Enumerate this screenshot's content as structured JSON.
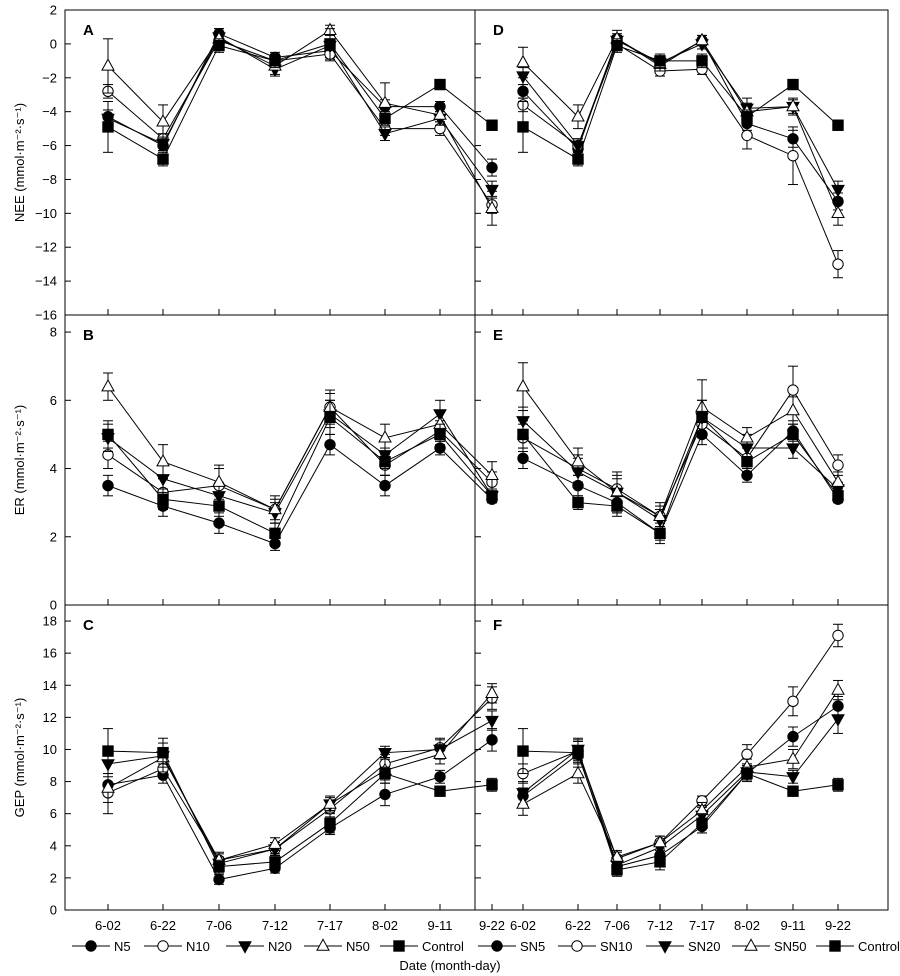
{
  "xlabel": "Date (month-day)",
  "chart_data": [
    {
      "panel": "A",
      "type": "line",
      "ylabel": "NEE (mmol·m⁻²·s⁻¹)",
      "ylim": [
        -16,
        2
      ],
      "yticks": [
        2,
        0,
        -2,
        -4,
        -6,
        -8,
        -10,
        -12,
        -14,
        -16
      ],
      "categories": [
        "6-02",
        "6-22",
        "7-06",
        "7-12",
        "7-17",
        "8-02",
        "9-11",
        "9-22"
      ],
      "series": [
        {
          "name": "N5",
          "marker": "circle-filled",
          "values": [
            -4.3,
            -6.0,
            0.6,
            -0.8,
            -0.4,
            -3.7,
            -3.7,
            -7.3
          ],
          "err": [
            0.4,
            0.3,
            0.3,
            0.3,
            0.4,
            0.4,
            0.3,
            0.5
          ]
        },
        {
          "name": "N10",
          "marker": "circle-open",
          "values": [
            -2.8,
            -5.6,
            0.2,
            -1.0,
            -0.6,
            -5.0,
            -5.0,
            -9.5
          ],
          "err": [
            0.4,
            0.3,
            0.3,
            0.3,
            0.4,
            0.4,
            0.4,
            0.5
          ]
        },
        {
          "name": "N20",
          "marker": "tri-down-filled",
          "values": [
            -4.4,
            -5.9,
            0.4,
            -1.5,
            -0.1,
            -5.3,
            -4.4,
            -8.6
          ],
          "err": [
            0.5,
            0.4,
            0.3,
            0.4,
            0.3,
            0.4,
            0.4,
            0.5
          ]
        },
        {
          "name": "N50",
          "marker": "tri-up-open",
          "values": [
            -1.3,
            -4.6,
            0.3,
            -1.3,
            0.8,
            -3.5,
            -4.2,
            -9.7
          ],
          "err": [
            1.6,
            1.0,
            0.6,
            0.5,
            0.3,
            1.2,
            0.4,
            1.0
          ]
        },
        {
          "name": "Control",
          "marker": "square-filled",
          "values": [
            -4.9,
            -6.8,
            -0.1,
            -1.0,
            0.0,
            -4.4,
            -2.4,
            -4.8
          ],
          "err": [
            1.5,
            0.4,
            0.4,
            0.4,
            0.9,
            0.4,
            0.2,
            0.3
          ]
        }
      ]
    },
    {
      "panel": "D",
      "type": "line",
      "ylim": [
        -16,
        2
      ],
      "yticks": [
        2,
        0,
        -2,
        -4,
        -6,
        -8,
        -10,
        -12,
        -14,
        -16
      ],
      "categories": [
        "6-02",
        "6-22",
        "7-06",
        "7-12",
        "7-17",
        "8-02",
        "9-11",
        "9-22"
      ],
      "series": [
        {
          "name": "SN5",
          "marker": "circle-filled",
          "values": [
            -2.8,
            -6.2,
            0.3,
            -1.3,
            0.2,
            -4.7,
            -5.6,
            -9.3
          ],
          "err": [
            0.4,
            0.4,
            0.3,
            0.3,
            0.3,
            0.4,
            0.5,
            0.5
          ]
        },
        {
          "name": "SN10",
          "marker": "circle-open",
          "values": [
            -3.6,
            -6.0,
            0.0,
            -1.6,
            -1.5,
            -5.4,
            -6.6,
            -13.0
          ],
          "err": [
            0.4,
            0.4,
            0.3,
            0.3,
            0.3,
            0.8,
            1.7,
            0.8
          ]
        },
        {
          "name": "SN20",
          "marker": "tri-down-filled",
          "values": [
            -1.9,
            -6.0,
            0.2,
            -1.1,
            0.0,
            -3.8,
            -3.7,
            -8.6
          ],
          "err": [
            0.5,
            0.4,
            0.3,
            0.3,
            0.3,
            0.6,
            0.4,
            0.5
          ]
        },
        {
          "name": "SN50",
          "marker": "tri-up-open",
          "values": [
            -1.1,
            -4.3,
            0.3,
            -1.2,
            0.2,
            -4.0,
            -3.7,
            -10.0
          ],
          "err": [
            0.9,
            0.7,
            0.5,
            0.4,
            0.3,
            0.5,
            0.5,
            0.7
          ]
        },
        {
          "name": "Control",
          "marker": "square-filled",
          "values": [
            -4.9,
            -6.8,
            -0.1,
            -1.0,
            -1.0,
            -4.3,
            -2.4,
            -4.8
          ],
          "err": [
            1.5,
            0.4,
            0.4,
            0.4,
            0.4,
            0.4,
            0.2,
            0.3
          ]
        }
      ]
    },
    {
      "panel": "B",
      "type": "line",
      "ylabel": "ER (mmol·m⁻²·s⁻¹)",
      "ylim": [
        0,
        8.5
      ],
      "yticks": [
        0,
        2,
        4,
        6,
        8
      ],
      "categories": [
        "6-02",
        "6-22",
        "7-06",
        "7-12",
        "7-17",
        "8-02",
        "9-11",
        "9-22"
      ],
      "series": [
        {
          "name": "N5",
          "marker": "circle-filled",
          "values": [
            3.5,
            2.9,
            2.4,
            1.8,
            4.7,
            3.5,
            4.6,
            3.1
          ],
          "err": [
            0.3,
            0.3,
            0.3,
            0.2,
            0.3,
            0.3,
            0.2,
            0.1
          ]
        },
        {
          "name": "N10",
          "marker": "circle-open",
          "values": [
            4.4,
            3.3,
            3.5,
            2.8,
            5.8,
            4.1,
            5.1,
            3.6
          ],
          "err": [
            0.4,
            0.4,
            0.5,
            0.3,
            0.4,
            0.3,
            0.3,
            0.3
          ]
        },
        {
          "name": "N20",
          "marker": "tri-down-filled",
          "values": [
            4.9,
            3.7,
            3.2,
            2.7,
            5.6,
            4.4,
            5.6,
            3.2
          ],
          "err": [
            0.4,
            0.4,
            0.3,
            0.3,
            0.4,
            0.4,
            0.4,
            0.2
          ]
        },
        {
          "name": "N50",
          "marker": "tri-up-open",
          "values": [
            6.4,
            4.2,
            3.6,
            2.8,
            5.8,
            4.9,
            5.3,
            3.8
          ],
          "err": [
            0.4,
            0.5,
            0.5,
            0.4,
            0.5,
            0.4,
            0.4,
            0.4
          ]
        },
        {
          "name": "Control",
          "marker": "square-filled",
          "values": [
            5.0,
            3.1,
            2.9,
            2.1,
            5.5,
            4.2,
            5.0,
            3.2
          ],
          "err": [
            0.4,
            0.3,
            0.3,
            0.3,
            0.5,
            0.4,
            0.3,
            0.2
          ]
        }
      ]
    },
    {
      "panel": "E",
      "type": "line",
      "ylim": [
        0,
        8.5
      ],
      "yticks": [
        0,
        2,
        4,
        6,
        8
      ],
      "categories": [
        "6-02",
        "6-22",
        "7-06",
        "7-12",
        "7-17",
        "8-02",
        "9-11",
        "9-22"
      ],
      "series": [
        {
          "name": "SN5",
          "marker": "circle-filled",
          "values": [
            4.3,
            3.5,
            3.0,
            2.1,
            5.0,
            3.8,
            5.1,
            3.1
          ],
          "err": [
            0.3,
            0.3,
            0.3,
            0.2,
            0.3,
            0.2,
            0.3,
            0.1
          ]
        },
        {
          "name": "SN10",
          "marker": "circle-open",
          "values": [
            4.9,
            4.0,
            3.4,
            2.6,
            5.3,
            4.3,
            6.3,
            4.1
          ],
          "err": [
            0.4,
            0.4,
            0.4,
            0.3,
            0.4,
            0.4,
            0.7,
            0.3
          ]
        },
        {
          "name": "SN20",
          "marker": "tri-down-filled",
          "values": [
            5.4,
            3.9,
            3.3,
            2.5,
            5.5,
            4.6,
            4.6,
            3.4
          ],
          "err": [
            0.4,
            0.4,
            0.6,
            0.3,
            0.5,
            0.4,
            0.3,
            0.2
          ]
        },
        {
          "name": "SN50",
          "marker": "tri-up-open",
          "values": [
            6.4,
            4.2,
            3.3,
            2.6,
            5.8,
            4.9,
            5.7,
            3.6
          ],
          "err": [
            0.7,
            0.4,
            0.4,
            0.4,
            0.8,
            0.3,
            0.4,
            0.3
          ]
        },
        {
          "name": "Control",
          "marker": "square-filled",
          "values": [
            5.0,
            3.0,
            2.9,
            2.1,
            5.5,
            4.2,
            5.0,
            3.2
          ],
          "err": [
            0.4,
            0.2,
            0.3,
            0.3,
            0.5,
            0.4,
            0.3,
            0.2
          ]
        }
      ]
    },
    {
      "panel": "C",
      "type": "line",
      "ylabel": "GEP (mmol·m⁻²·s⁻¹)",
      "ylim": [
        0,
        19
      ],
      "yticks": [
        0,
        2,
        4,
        6,
        8,
        10,
        12,
        14,
        16,
        18
      ],
      "categories": [
        "6-02",
        "6-22",
        "7-06",
        "7-12",
        "7-17",
        "8-02",
        "9-11",
        "9-22"
      ],
      "series": [
        {
          "name": "N5",
          "marker": "circle-filled",
          "values": [
            7.8,
            8.4,
            1.9,
            2.6,
            5.1,
            7.2,
            8.3,
            10.6
          ],
          "err": [
            0.5,
            0.5,
            0.3,
            0.3,
            0.4,
            0.7,
            0.4,
            0.7
          ]
        },
        {
          "name": "N10",
          "marker": "circle-open",
          "values": [
            7.3,
            8.8,
            3.1,
            3.8,
            6.3,
            9.1,
            10.1,
            13.2
          ],
          "err": [
            0.6,
            0.5,
            0.4,
            0.4,
            0.5,
            0.6,
            0.6,
            0.7
          ]
        },
        {
          "name": "N20",
          "marker": "tri-down-filled",
          "values": [
            9.1,
            9.6,
            2.9,
            3.8,
            6.6,
            9.8,
            10.0,
            11.8
          ],
          "err": [
            0.6,
            0.5,
            0.4,
            0.4,
            0.4,
            0.4,
            0.6,
            0.6
          ]
        },
        {
          "name": "N50",
          "marker": "tri-up-open",
          "values": [
            7.6,
            9.5,
            3.1,
            4.1,
            6.6,
            8.7,
            9.7,
            13.5
          ],
          "err": [
            1.6,
            0.9,
            0.5,
            0.4,
            0.5,
            0.8,
            0.6,
            0.6
          ]
        },
        {
          "name": "Control",
          "marker": "square-filled",
          "values": [
            9.9,
            9.8,
            2.7,
            3.0,
            5.4,
            8.5,
            7.4,
            7.8
          ],
          "err": [
            1.4,
            0.9,
            0.4,
            0.5,
            0.6,
            0.4,
            0.3,
            0.4
          ]
        }
      ]
    },
    {
      "panel": "F",
      "type": "line",
      "ylim": [
        0,
        19
      ],
      "yticks": [
        0,
        2,
        4,
        6,
        8,
        10,
        12,
        14,
        16,
        18
      ],
      "categories": [
        "6-02",
        "6-22",
        "7-06",
        "7-12",
        "7-17",
        "8-02",
        "9-11",
        "9-22"
      ],
      "series": [
        {
          "name": "SN5",
          "marker": "circle-filled",
          "values": [
            7.1,
            9.7,
            2.7,
            3.4,
            5.2,
            8.5,
            10.8,
            12.7
          ],
          "err": [
            0.5,
            0.5,
            0.3,
            0.3,
            0.4,
            0.5,
            0.6,
            0.6
          ]
        },
        {
          "name": "SN10",
          "marker": "circle-open",
          "values": [
            8.5,
            9.9,
            3.2,
            4.2,
            6.8,
            9.7,
            13.0,
            17.1
          ],
          "err": [
            0.6,
            0.6,
            0.4,
            0.4,
            0.3,
            0.6,
            0.9,
            0.7
          ]
        },
        {
          "name": "SN20",
          "marker": "tri-down-filled",
          "values": [
            7.3,
            10.0,
            2.8,
            3.9,
            5.9,
            8.6,
            8.3,
            11.9
          ],
          "err": [
            0.7,
            0.6,
            0.4,
            0.4,
            0.5,
            0.5,
            0.4,
            0.9
          ]
        },
        {
          "name": "SN50",
          "marker": "tri-up-open",
          "values": [
            6.6,
            8.5,
            3.3,
            4.2,
            6.2,
            8.9,
            9.4,
            13.7
          ],
          "err": [
            0.7,
            0.6,
            0.4,
            0.4,
            0.5,
            0.5,
            0.6,
            0.6
          ]
        },
        {
          "name": "Control",
          "marker": "square-filled",
          "values": [
            9.9,
            9.8,
            2.5,
            3.0,
            5.4,
            8.5,
            7.4,
            7.8
          ],
          "err": [
            1.4,
            0.9,
            0.4,
            0.5,
            0.6,
            0.4,
            0.3,
            0.4
          ]
        }
      ]
    }
  ]
}
